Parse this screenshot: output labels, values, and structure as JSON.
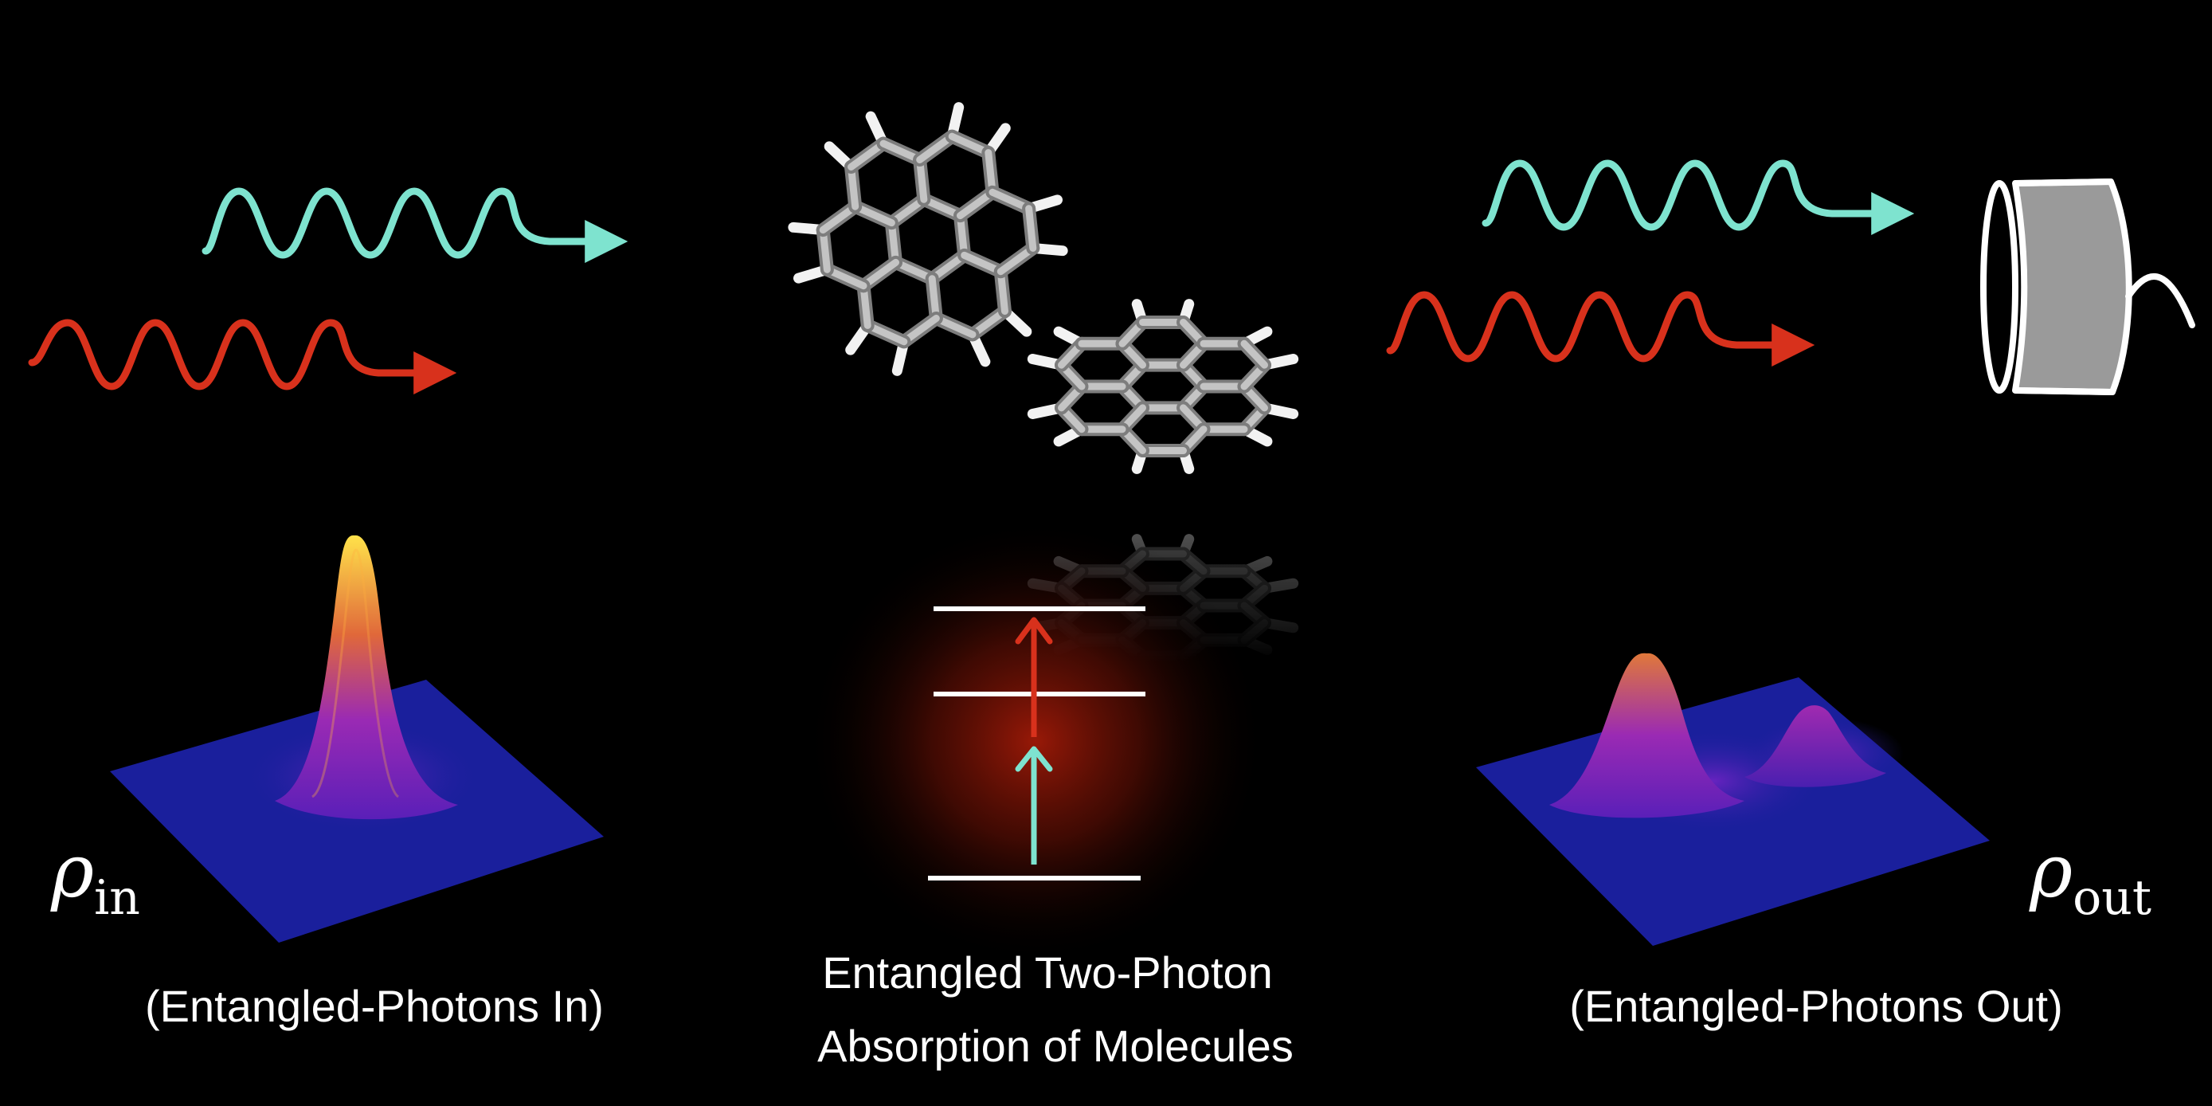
{
  "left_panel": {
    "rho_symbol": "ρ",
    "rho_subscript": "in",
    "caption": "(Entangled-Photons In)"
  },
  "center_panel": {
    "caption_line1": "Entangled Two-Photon",
    "caption_line2": "Absorption of Molecules"
  },
  "right_panel": {
    "rho_symbol": "ρ",
    "rho_subscript": "out",
    "caption": "(Entangled-Photons Out)"
  },
  "colors": {
    "background": "#000000",
    "photon_cyan": "#7ee3cf",
    "photon_red": "#d8311c",
    "surface_base": "#1a1f9c",
    "peak_high": "#ffe24a",
    "peak_mid": "#e0683a",
    "peak_low": "#7a24c8",
    "detector_fill": "#9a9a9a",
    "molecule_gray": "#b4b4b4"
  },
  "icons": [
    "photon-wave-icon",
    "molecule-icon",
    "detector-icon",
    "energy-level-icon"
  ]
}
